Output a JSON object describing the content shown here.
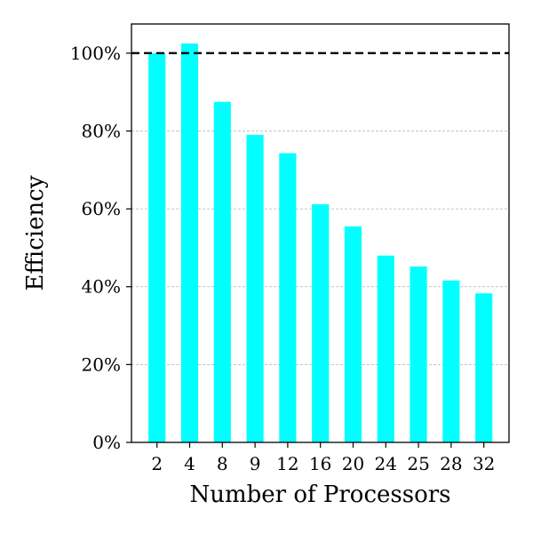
{
  "chart_data": {
    "type": "bar",
    "title": "",
    "xlabel": "Number of Processors",
    "ylabel": "Efficiency",
    "categories": [
      "2",
      "4",
      "8",
      "9",
      "12",
      "16",
      "20",
      "24",
      "25",
      "28",
      "32"
    ],
    "values": [
      100,
      102.5,
      87.5,
      79,
      74.3,
      61.2,
      55.5,
      48,
      45.2,
      41.6,
      38.3
    ],
    "ylim": [
      0,
      107.5
    ],
    "yticks": [
      0,
      20,
      40,
      60,
      80,
      100
    ],
    "ytick_labels": [
      "0%",
      "20%",
      "40%",
      "60%",
      "80%",
      "100%"
    ],
    "reference_line": 100,
    "grid": "y-dashed",
    "legend": "none",
    "bar_color": "#00ffff",
    "reference_line_color": "#000000",
    "grid_color": "#b0b0b0"
  }
}
